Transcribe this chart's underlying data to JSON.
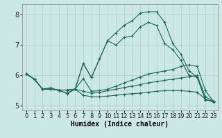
{
  "title": "",
  "xlabel": "Humidex (Indice chaleur)",
  "ylabel": "",
  "xlim": [
    -0.5,
    23.5
  ],
  "ylim": [
    4.85,
    8.35
  ],
  "yticks": [
    5,
    6,
    7,
    8
  ],
  "xticks": [
    0,
    1,
    2,
    3,
    4,
    5,
    6,
    7,
    8,
    9,
    10,
    11,
    12,
    13,
    14,
    15,
    16,
    17,
    18,
    19,
    20,
    21,
    22,
    23
  ],
  "bg_color": "#cce8e4",
  "grid_color": "#aacccc",
  "line_color": "#1a6655",
  "lines": [
    {
      "x": [
        0,
        1,
        2,
        3,
        4,
        5,
        6,
        7,
        8,
        9,
        10,
        11,
        12,
        13,
        14,
        15,
        16,
        17,
        18,
        19,
        20,
        21,
        22,
        23
      ],
      "y": [
        6.05,
        5.88,
        5.55,
        5.55,
        5.52,
        5.52,
        5.55,
        6.4,
        5.93,
        6.55,
        7.15,
        7.0,
        7.25,
        7.3,
        7.6,
        7.75,
        7.65,
        7.05,
        6.85,
        6.5,
        6.0,
        5.95,
        5.2,
        5.15
      ]
    },
    {
      "x": [
        0,
        1,
        2,
        3,
        4,
        5,
        6,
        7,
        8,
        9,
        10,
        11,
        12,
        13,
        14,
        15,
        16,
        17,
        18,
        19,
        20,
        21,
        22,
        23
      ],
      "y": [
        6.05,
        5.88,
        5.55,
        5.55,
        5.52,
        5.52,
        5.55,
        6.4,
        5.93,
        6.55,
        7.15,
        7.4,
        7.65,
        7.8,
        8.05,
        8.1,
        8.1,
        7.75,
        7.05,
        6.7,
        6.15,
        5.95,
        5.2,
        5.15
      ]
    },
    {
      "x": [
        0,
        1,
        2,
        3,
        4,
        5,
        6,
        7,
        8,
        9,
        10,
        11,
        12,
        13,
        14,
        15,
        16,
        17,
        18,
        19,
        20,
        21,
        22,
        23
      ],
      "y": [
        6.05,
        5.88,
        5.55,
        5.55,
        5.52,
        5.52,
        5.55,
        5.9,
        5.48,
        5.5,
        5.55,
        5.65,
        5.75,
        5.85,
        5.95,
        6.05,
        6.1,
        6.15,
        6.2,
        6.3,
        6.35,
        6.3,
        5.5,
        5.15
      ]
    },
    {
      "x": [
        0,
        1,
        2,
        3,
        4,
        5,
        6,
        7,
        8,
        9,
        10,
        11,
        12,
        13,
        14,
        15,
        16,
        17,
        18,
        19,
        20,
        21,
        22,
        23
      ],
      "y": [
        6.05,
        5.88,
        5.55,
        5.55,
        5.52,
        5.4,
        5.55,
        5.48,
        5.42,
        5.44,
        5.5,
        5.55,
        5.6,
        5.65,
        5.7,
        5.76,
        5.8,
        5.84,
        5.88,
        5.92,
        5.96,
        6.0,
        5.3,
        5.15
      ]
    },
    {
      "x": [
        0,
        1,
        2,
        3,
        4,
        5,
        6,
        7,
        8,
        9,
        10,
        11,
        12,
        13,
        14,
        15,
        16,
        17,
        18,
        19,
        20,
        21,
        22,
        23
      ],
      "y": [
        6.05,
        5.88,
        5.55,
        5.6,
        5.5,
        5.42,
        5.55,
        5.35,
        5.3,
        5.3,
        5.32,
        5.35,
        5.38,
        5.4,
        5.42,
        5.45,
        5.48,
        5.5,
        5.5,
        5.5,
        5.48,
        5.45,
        5.22,
        5.12
      ]
    }
  ]
}
